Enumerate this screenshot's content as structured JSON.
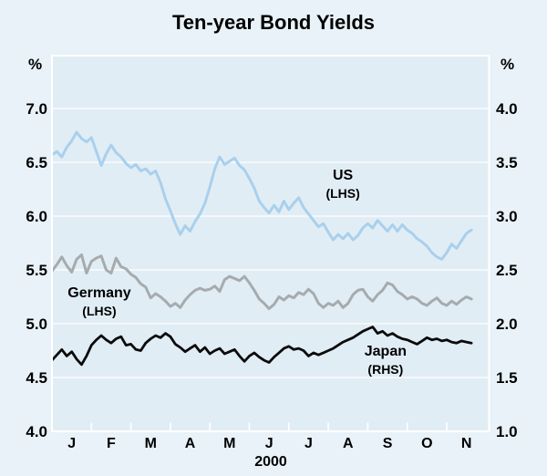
{
  "title": "Ten-year Bond Yields",
  "left_unit_label": "%",
  "right_unit_label": "%",
  "x_axis_caption": "2000",
  "colors": {
    "outer_background": "#E8F2F8",
    "plot_background": "#E1EDF5",
    "gridline": "#FFFFFF",
    "frame": "#FFFFFF",
    "text": "#000000",
    "us_line": "#A9D0EC",
    "germany_line": "#A6ABAE",
    "japan_line": "#0B0B0B"
  },
  "chart_data": {
    "type": "line",
    "title": "Ten-year Bond Yields",
    "x_domain_note": "January to early December 2000, monthly grid",
    "x_tick_labels": [
      "J",
      "F",
      "M",
      "A",
      "M",
      "J",
      "J",
      "A",
      "S",
      "O",
      "N"
    ],
    "x_axis_caption": "2000",
    "left_axis": {
      "unit": "%",
      "min": 4.0,
      "max": 7.5,
      "ticks": [
        7.0,
        6.5,
        6.0,
        5.5,
        5.0,
        4.5,
        4.0
      ]
    },
    "right_axis": {
      "unit": "%",
      "min": 1.0,
      "max": 4.5,
      "ticks": [
        4.0,
        3.5,
        3.0,
        2.5,
        2.0,
        1.5,
        1.0
      ]
    },
    "grid": "horizontal white lines at labelled ticks, white month-boundary ticks on bottom axis",
    "t_start": 0,
    "t_step": 0.125,
    "series": [
      {
        "name": "US",
        "axis": "LHS",
        "color": "#A9D0EC",
        "width": 3,
        "values": [
          6.57,
          6.6,
          6.55,
          6.64,
          6.7,
          6.78,
          6.72,
          6.69,
          6.73,
          6.6,
          6.47,
          6.58,
          6.66,
          6.59,
          6.55,
          6.49,
          6.45,
          6.48,
          6.42,
          6.44,
          6.39,
          6.42,
          6.31,
          6.16,
          6.05,
          5.93,
          5.83,
          5.91,
          5.86,
          5.95,
          6.02,
          6.12,
          6.27,
          6.44,
          6.55,
          6.48,
          6.51,
          6.54,
          6.47,
          6.43,
          6.35,
          6.26,
          6.14,
          6.08,
          6.03,
          6.1,
          6.04,
          6.14,
          6.06,
          6.12,
          6.17,
          6.08,
          6.02,
          5.96,
          5.9,
          5.93,
          5.85,
          5.78,
          5.83,
          5.79,
          5.84,
          5.78,
          5.82,
          5.89,
          5.93,
          5.89,
          5.96,
          5.91,
          5.86,
          5.92,
          5.86,
          5.92,
          5.87,
          5.84,
          5.79,
          5.76,
          5.72,
          5.66,
          5.62,
          5.6,
          5.66,
          5.74,
          5.7,
          5.77,
          5.84,
          5.87
        ]
      },
      {
        "name": "Germany",
        "axis": "LHS",
        "color": "#A6ABAE",
        "width": 3,
        "values": [
          5.49,
          5.55,
          5.62,
          5.54,
          5.48,
          5.6,
          5.64,
          5.47,
          5.58,
          5.61,
          5.63,
          5.5,
          5.47,
          5.61,
          5.53,
          5.51,
          5.46,
          5.43,
          5.37,
          5.34,
          5.24,
          5.28,
          5.25,
          5.21,
          5.16,
          5.19,
          5.15,
          5.22,
          5.27,
          5.31,
          5.33,
          5.31,
          5.32,
          5.35,
          5.3,
          5.41,
          5.44,
          5.42,
          5.4,
          5.44,
          5.38,
          5.31,
          5.23,
          5.19,
          5.14,
          5.18,
          5.25,
          5.22,
          5.26,
          5.24,
          5.29,
          5.27,
          5.32,
          5.28,
          5.19,
          5.15,
          5.19,
          5.17,
          5.21,
          5.15,
          5.19,
          5.27,
          5.31,
          5.32,
          5.25,
          5.21,
          5.27,
          5.31,
          5.38,
          5.36,
          5.3,
          5.27,
          5.23,
          5.25,
          5.23,
          5.19,
          5.17,
          5.21,
          5.24,
          5.19,
          5.17,
          5.21,
          5.18,
          5.22,
          5.25,
          5.23
        ]
      },
      {
        "name": "Japan",
        "axis": "RHS",
        "color": "#0B0B0B",
        "width": 2.8,
        "values": [
          1.66,
          1.71,
          1.76,
          1.7,
          1.74,
          1.67,
          1.62,
          1.7,
          1.8,
          1.85,
          1.89,
          1.85,
          1.82,
          1.86,
          1.88,
          1.8,
          1.81,
          1.76,
          1.75,
          1.82,
          1.86,
          1.89,
          1.87,
          1.91,
          1.88,
          1.81,
          1.78,
          1.74,
          1.77,
          1.8,
          1.74,
          1.78,
          1.72,
          1.75,
          1.77,
          1.72,
          1.74,
          1.76,
          1.7,
          1.65,
          1.7,
          1.73,
          1.69,
          1.66,
          1.64,
          1.69,
          1.73,
          1.77,
          1.79,
          1.76,
          1.77,
          1.75,
          1.7,
          1.73,
          1.71,
          1.73,
          1.75,
          1.77,
          1.8,
          1.83,
          1.85,
          1.87,
          1.9,
          1.93,
          1.95,
          1.97,
          1.91,
          1.93,
          1.89,
          1.91,
          1.88,
          1.86,
          1.85,
          1.83,
          1.81,
          1.84,
          1.87,
          1.85,
          1.86,
          1.84,
          1.85,
          1.83,
          1.82,
          1.84,
          1.83,
          1.82
        ]
      }
    ],
    "annotations": [
      {
        "id": "us",
        "lines": [
          "US",
          "(LHS)"
        ],
        "t": 7.37,
        "value": 6.37,
        "axis": "LHS"
      },
      {
        "id": "germany",
        "lines": [
          "Germany",
          "(LHS)"
        ],
        "t": 1.2,
        "value": 5.28,
        "axis": "LHS"
      },
      {
        "id": "japan",
        "lines": [
          "Japan",
          "(RHS)"
        ],
        "t": 8.45,
        "value": 1.74,
        "axis": "RHS"
      }
    ],
    "legend_position": "inline annotations next to each line"
  }
}
